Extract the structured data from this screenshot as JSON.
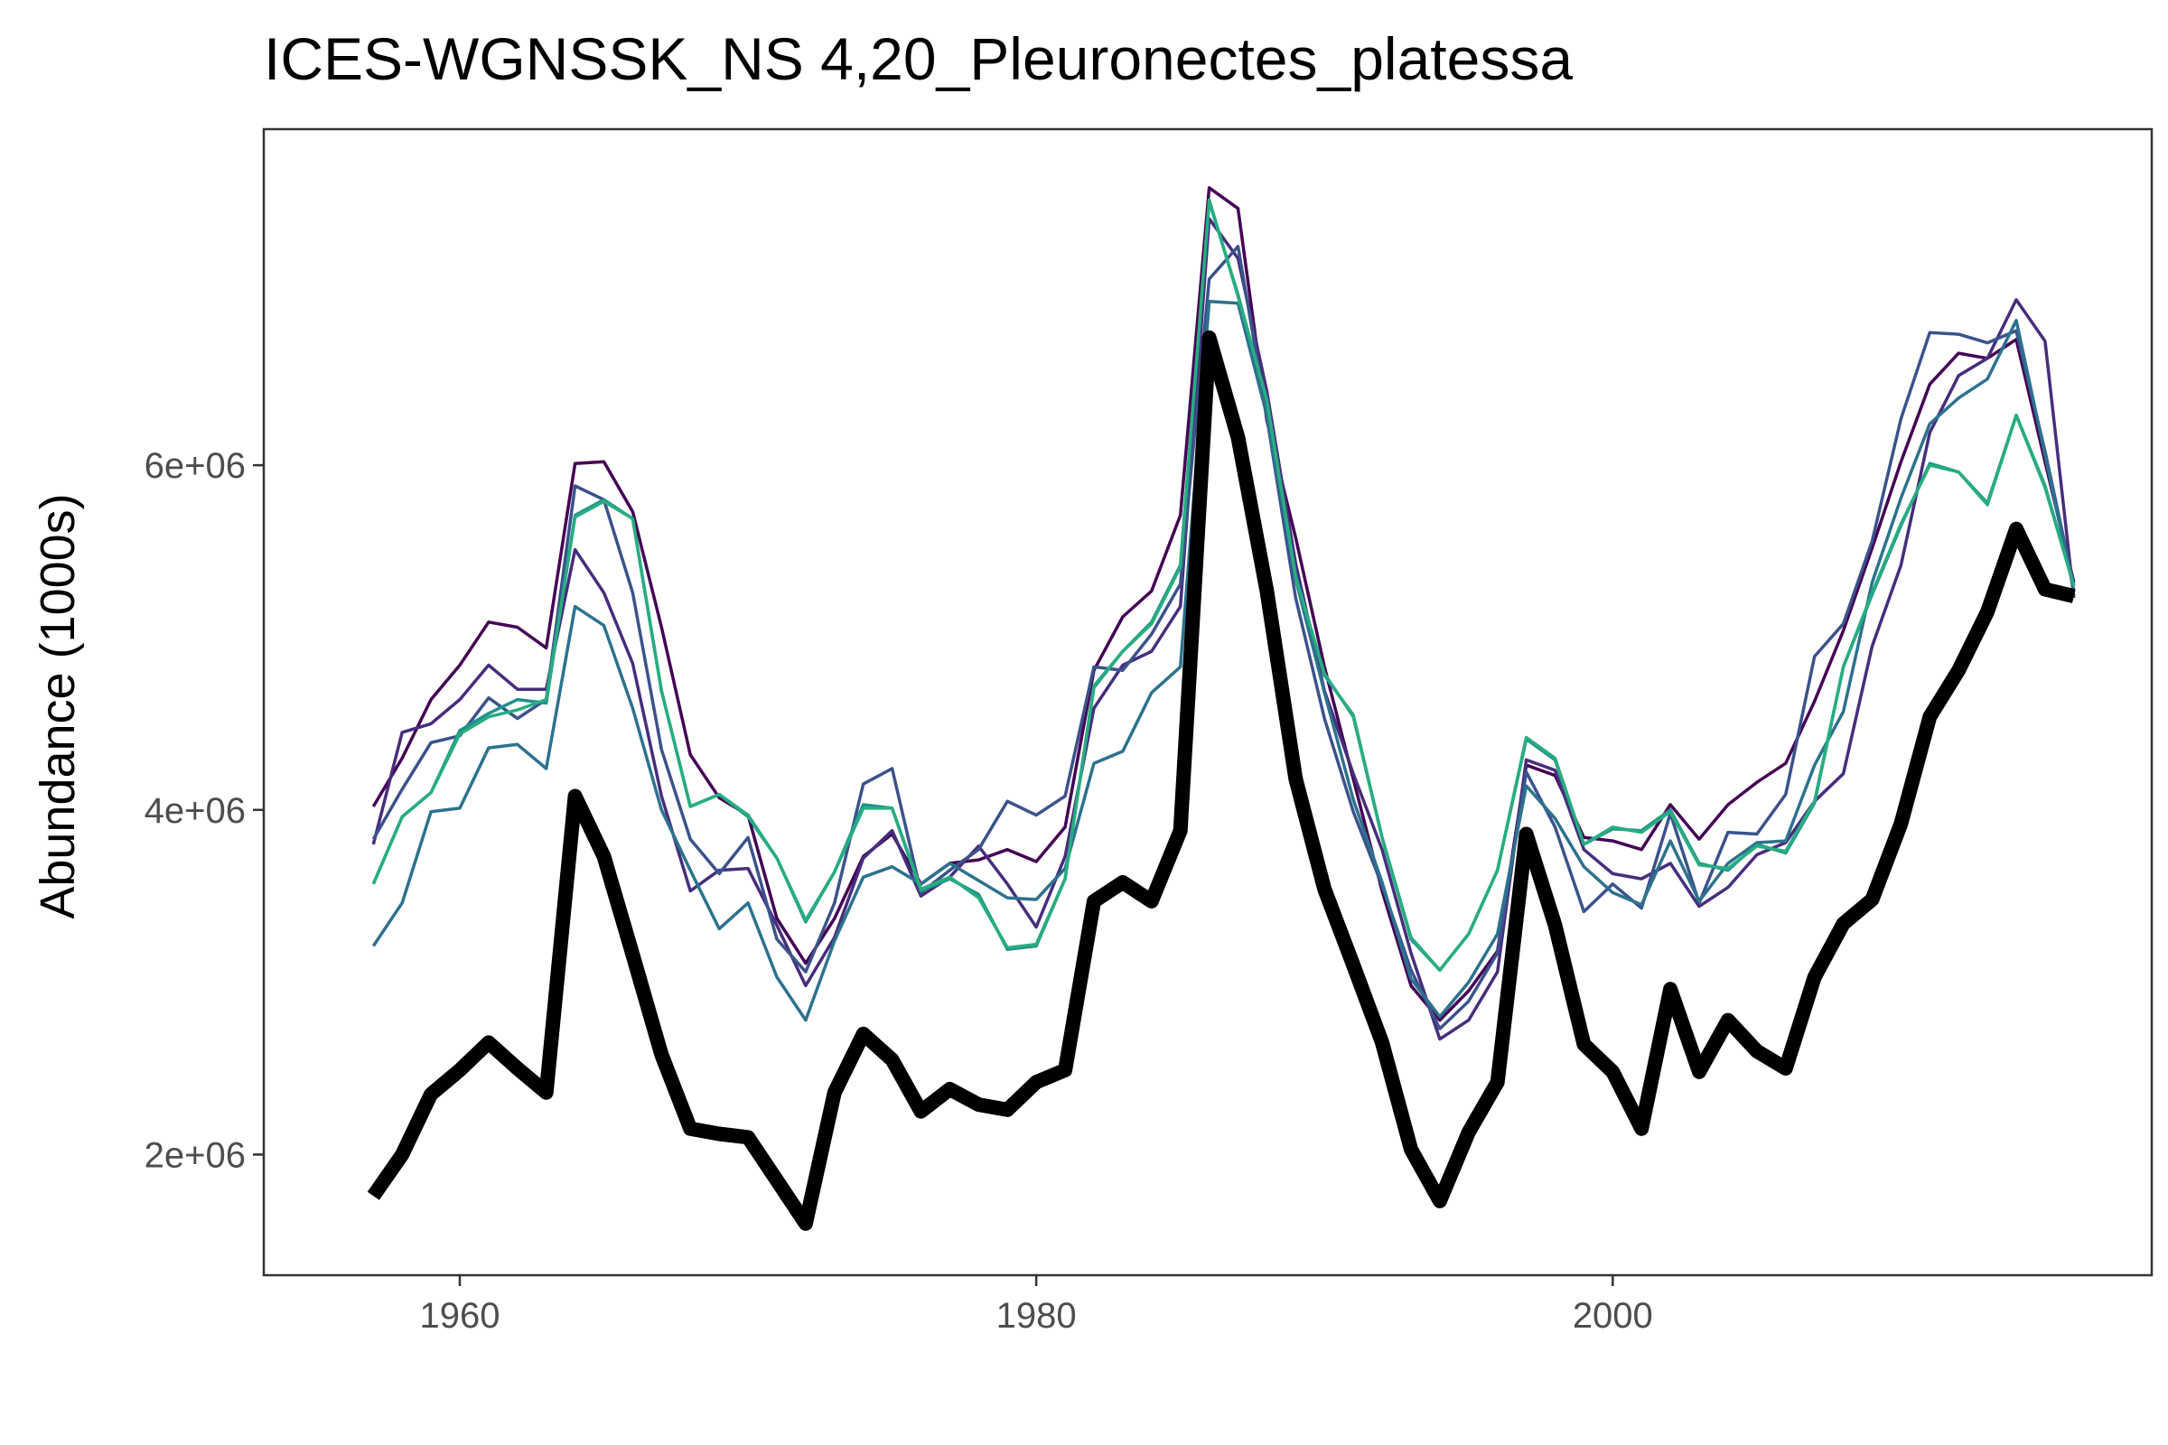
{
  "chart_data": {
    "type": "line",
    "title": "ICES-WGNSSK_NS 4,20_Pleuronectes_platessa",
    "xlabel": "",
    "ylabel": "Abundance (1000s)",
    "xlim": [
      1953.2,
      2018.7
    ],
    "ylim": [
      1300000,
      7950000
    ],
    "x_ticks": [
      1960,
      1980,
      2000
    ],
    "x_tick_labels": [
      "1960",
      "1980",
      "2000"
    ],
    "y_ticks": [
      2000000,
      4000000,
      6000000
    ],
    "y_tick_labels": [
      "2e+06",
      "4e+06",
      "6e+06"
    ],
    "grid": false,
    "legend": "none",
    "x": [
      1957,
      1958,
      1959,
      1960,
      1961,
      1962,
      1963,
      1964,
      1965,
      1966,
      1967,
      1968,
      1969,
      1970,
      1971,
      1972,
      1973,
      1974,
      1975,
      1976,
      1977,
      1978,
      1979,
      1980,
      1981,
      1982,
      1983,
      1984,
      1985,
      1986,
      1987,
      1988,
      1989,
      1990,
      1991,
      1992,
      1993,
      1994,
      1995,
      1996,
      1997,
      1998,
      1999,
      2000,
      2001,
      2002,
      2003,
      2004,
      2005,
      2006,
      2007,
      2008,
      2009,
      2010,
      2011,
      2012,
      2013,
      2014,
      2015,
      2016
    ],
    "series": [
      {
        "color": "#000000",
        "values": [
          1760000,
          2000000,
          2350000,
          2490000,
          2650000,
          2500000,
          2360000,
          4080000,
          3730000,
          3160000,
          2580000,
          2150000,
          2120000,
          2100000,
          1850000,
          1600000,
          2360000,
          2700000,
          2550000,
          2250000,
          2380000,
          2290000,
          2260000,
          2420000,
          2490000,
          3470000,
          3580000,
          3470000,
          3880000,
          6740000,
          6160000,
          5270000,
          4180000,
          3540000,
          3100000,
          2650000,
          2030000,
          1730000,
          2130000,
          2420000,
          3860000,
          3330000,
          2640000,
          2480000,
          2150000,
          2960000,
          2480000,
          2780000,
          2600000,
          2500000,
          3030000,
          3340000,
          3480000,
          3920000,
          4540000,
          4810000,
          5150000,
          5630000,
          5280000,
          5240000
        ]
      },
      {
        "color": "#440154",
        "values": [
          4020000,
          4300000,
          4640000,
          4840000,
          5090000,
          5060000,
          4940000,
          6010000,
          6020000,
          5730000,
          5060000,
          4320000,
          4070000,
          3970000,
          3370000,
          3110000,
          3370000,
          3730000,
          3860000,
          3570000,
          3690000,
          3710000,
          3770000,
          3700000,
          3900000,
          4810000,
          5120000,
          5270000,
          5710000,
          7610000,
          7490000,
          6260000,
          5580000,
          4830000,
          4180000,
          3530000,
          2980000,
          2780000,
          2950000,
          3180000,
          4260000,
          4200000,
          3840000,
          3820000,
          3770000,
          4030000,
          3830000,
          4030000,
          4160000,
          4270000,
          4630000,
          5040000,
          5520000,
          6020000,
          6470000,
          6650000,
          6620000,
          6730000,
          6020000,
          5320000
        ]
      },
      {
        "color": "#472d7b",
        "values": [
          3800000,
          4450000,
          4500000,
          4640000,
          4840000,
          4700000,
          4700000,
          5510000,
          5260000,
          4850000,
          4080000,
          3530000,
          3650000,
          3660000,
          3330000,
          2980000,
          3260000,
          3720000,
          3880000,
          3500000,
          3610000,
          3790000,
          3570000,
          3320000,
          3730000,
          4590000,
          4840000,
          4920000,
          5180000,
          7430000,
          7200000,
          6430000,
          5430000,
          4690000,
          4210000,
          3770000,
          3170000,
          2670000,
          2780000,
          3060000,
          4290000,
          4230000,
          3770000,
          3630000,
          3600000,
          3690000,
          3440000,
          3550000,
          3740000,
          3810000,
          4050000,
          4210000,
          4950000,
          5420000,
          6190000,
          6520000,
          6620000,
          6960000,
          6720000,
          5230000
        ]
      },
      {
        "color": "#3b528b",
        "values": [
          3830000,
          4120000,
          4390000,
          4430000,
          4650000,
          4530000,
          4640000,
          5880000,
          5800000,
          5260000,
          4350000,
          3830000,
          3630000,
          3840000,
          3250000,
          3060000,
          3460000,
          4150000,
          4240000,
          3520000,
          3650000,
          3770000,
          4050000,
          3970000,
          4080000,
          4830000,
          4810000,
          5020000,
          5310000,
          7080000,
          7270000,
          6280000,
          5230000,
          4530000,
          3990000,
          3560000,
          3070000,
          2730000,
          2890000,
          3170000,
          4220000,
          3900000,
          3410000,
          3570000,
          3430000,
          3980000,
          3460000,
          3870000,
          3860000,
          4090000,
          4890000,
          5080000,
          5560000,
          6270000,
          6770000,
          6760000,
          6710000,
          6780000,
          6080000,
          5300000
        ]
      },
      {
        "color": "#2c728e",
        "values": [
          3210000,
          3460000,
          3990000,
          4010000,
          4360000,
          4380000,
          4240000,
          5180000,
          5070000,
          4590000,
          4000000,
          3650000,
          3310000,
          3460000,
          3030000,
          2780000,
          3240000,
          3610000,
          3670000,
          3570000,
          3690000,
          3590000,
          3490000,
          3480000,
          3660000,
          4270000,
          4340000,
          4680000,
          4830000,
          6950000,
          6940000,
          6290000,
          5340000,
          4680000,
          4060000,
          3580000,
          3020000,
          2800000,
          3000000,
          3280000,
          4140000,
          3950000,
          3670000,
          3520000,
          3450000,
          3820000,
          3470000,
          3690000,
          3810000,
          3820000,
          4260000,
          4570000,
          5320000,
          5810000,
          6240000,
          6390000,
          6500000,
          6840000,
          6060000,
          5270000
        ]
      },
      {
        "color": "#21918c",
        "values": [
          3570000,
          3960000,
          4100000,
          4460000,
          4560000,
          4640000,
          4620000,
          5710000,
          5800000,
          5690000,
          4690000,
          4020000,
          4090000,
          3960000,
          3720000,
          3350000,
          3640000,
          4030000,
          4010000,
          3530000,
          3600000,
          3510000,
          3190000,
          3210000,
          3600000,
          4710000,
          4920000,
          5090000,
          5420000,
          7530000,
          6990000,
          6370000,
          5360000,
          4780000,
          4550000,
          3840000,
          3250000,
          3070000,
          3280000,
          3650000,
          4410000,
          4290000,
          3800000,
          3890000,
          3880000,
          4000000,
          3690000,
          3650000,
          3800000,
          3750000,
          4040000,
          4830000,
          5250000,
          5650000,
          6010000,
          5960000,
          5780000,
          6290000,
          5880000,
          5300000
        ]
      },
      {
        "color": "#27ad81",
        "values": [
          3570000,
          3960000,
          4100000,
          4440000,
          4540000,
          4580000,
          4640000,
          5700000,
          5790000,
          5690000,
          4690000,
          4020000,
          4090000,
          3970000,
          3720000,
          3360000,
          3640000,
          4010000,
          4010000,
          3540000,
          3610000,
          3490000,
          3200000,
          3220000,
          3600000,
          4720000,
          4920000,
          5080000,
          5410000,
          7540000,
          6980000,
          6380000,
          5350000,
          4790000,
          4540000,
          3840000,
          3260000,
          3070000,
          3280000,
          3650000,
          4420000,
          4300000,
          3800000,
          3900000,
          3870000,
          3990000,
          3680000,
          3660000,
          3790000,
          3760000,
          4050000,
          4830000,
          5260000,
          5660000,
          6000000,
          5960000,
          5770000,
          6290000,
          5870000,
          5300000
        ]
      }
    ]
  }
}
